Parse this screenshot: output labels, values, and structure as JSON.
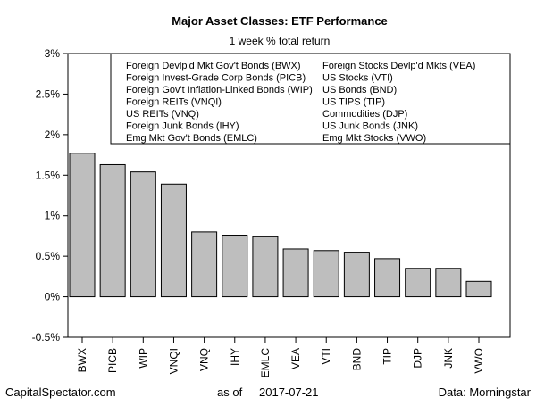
{
  "chart_data": {
    "type": "bar",
    "title": "Major Asset Classes: ETF Performance",
    "subtitle": "1 week % total return",
    "categories": [
      "BWX",
      "PICB",
      "WIP",
      "VNQI",
      "VNQ",
      "IHY",
      "EMLC",
      "VEA",
      "VTI",
      "BND",
      "TIP",
      "DJP",
      "JNK",
      "VWO"
    ],
    "values": [
      1.77,
      1.63,
      1.54,
      1.39,
      0.8,
      0.76,
      0.74,
      0.59,
      0.57,
      0.55,
      0.47,
      0.35,
      0.35,
      0.19
    ],
    "ylim": [
      -0.5,
      3
    ],
    "yticks": [
      -0.5,
      0,
      0.5,
      1,
      1.5,
      2,
      2.5,
      3
    ],
    "ytick_labels": [
      "-0.5%",
      "0%",
      "0.5%",
      "1%",
      "1.5%",
      "2%",
      "2.5%",
      "3%"
    ],
    "bar_color": "#bebebe",
    "bar_edge_color": "#000000",
    "grid": false,
    "legend_position": "top",
    "legend": {
      "left_column": [
        "Foreign Devlp'd Mkt Gov't Bonds (BWX)",
        "Foreign Invest-Grade Corp Bonds (PICB)",
        "Foreign Gov't Inflation-Linked Bonds (WIP)",
        "Foreign REITs (VNQI)",
        "US REITs (VNQ)",
        "Foreign Junk Bonds (IHY)",
        "Emg Mkt Gov't Bonds (EMLC)"
      ],
      "right_column": [
        "Foreign Stocks Devlp'd Mkts (VEA)",
        "US Stocks (VTI)",
        "US Bonds (BND)",
        "US TIPS (TIP)",
        "Commodities (DJP)",
        "US Junk Bonds (JNK)",
        "Emg Mkt Stocks (VWO)"
      ]
    },
    "footer": {
      "left": "CapitalSpectator.com",
      "center_prefix": "as of",
      "center_date": "2017-07-21",
      "right": "Data: Morningstar"
    }
  }
}
